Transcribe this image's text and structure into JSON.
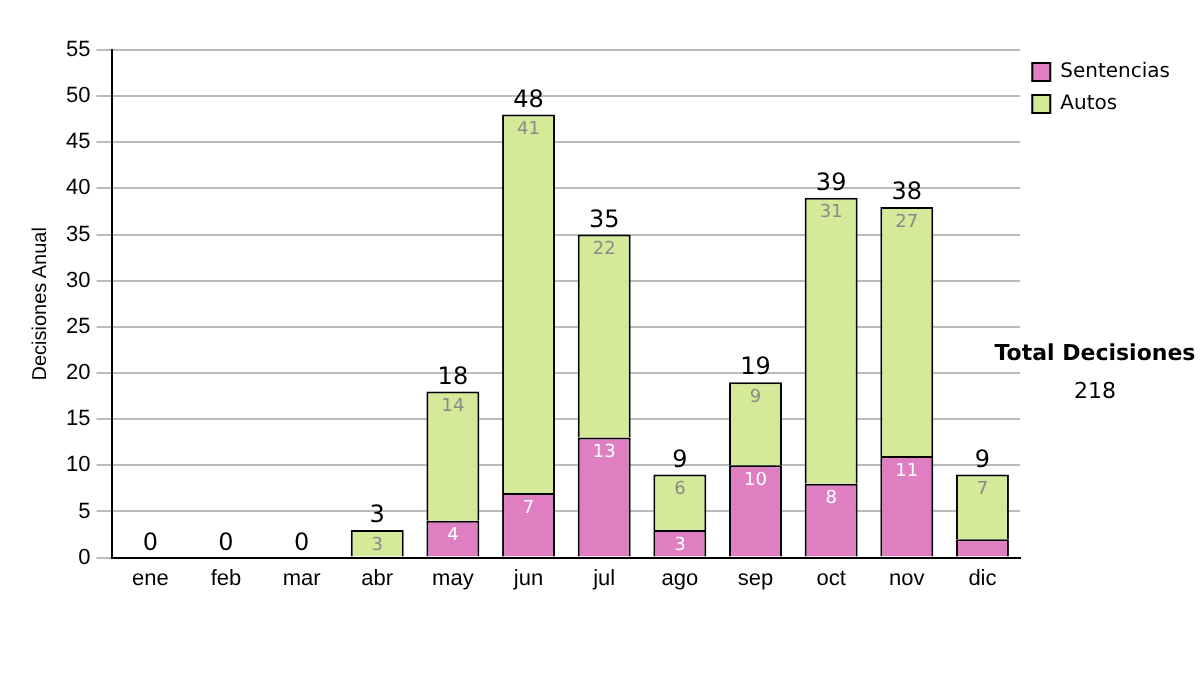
{
  "chart_data": {
    "type": "bar",
    "stacked": true,
    "ylabel": "Decisiones Anual",
    "categories": [
      "ene",
      "feb",
      "mar",
      "abr",
      "may",
      "jun",
      "jul",
      "ago",
      "sep",
      "oct",
      "nov",
      "dic"
    ],
    "series": [
      {
        "name": "Sentencias",
        "color": "#df7fc1",
        "values": [
          0,
          0,
          0,
          0,
          4,
          7,
          13,
          3,
          10,
          8,
          11,
          2
        ],
        "value_labels": [
          null,
          null,
          null,
          null,
          "4",
          "7",
          "13",
          "3",
          "10",
          "8",
          "11",
          null
        ]
      },
      {
        "name": "Autos",
        "color": "#d4ea98",
        "values": [
          0,
          0,
          0,
          3,
          14,
          41,
          22,
          6,
          9,
          31,
          27,
          7
        ],
        "value_labels": [
          null,
          null,
          null,
          "3",
          "14",
          "41",
          "22",
          "6",
          "9",
          "31",
          "27",
          "7"
        ]
      }
    ],
    "totals": [
      "0",
      "0",
      "0",
      "3",
      "18",
      "48",
      "35",
      "9",
      "19",
      "39",
      "38",
      "9"
    ],
    "ylim": [
      0,
      55
    ],
    "yticks": [
      0,
      5,
      10,
      15,
      20,
      25,
      30,
      35,
      40,
      45,
      50,
      55
    ],
    "grid": "y",
    "legend": "right",
    "annotations": [
      "Total Decisiones",
      "218"
    ]
  }
}
